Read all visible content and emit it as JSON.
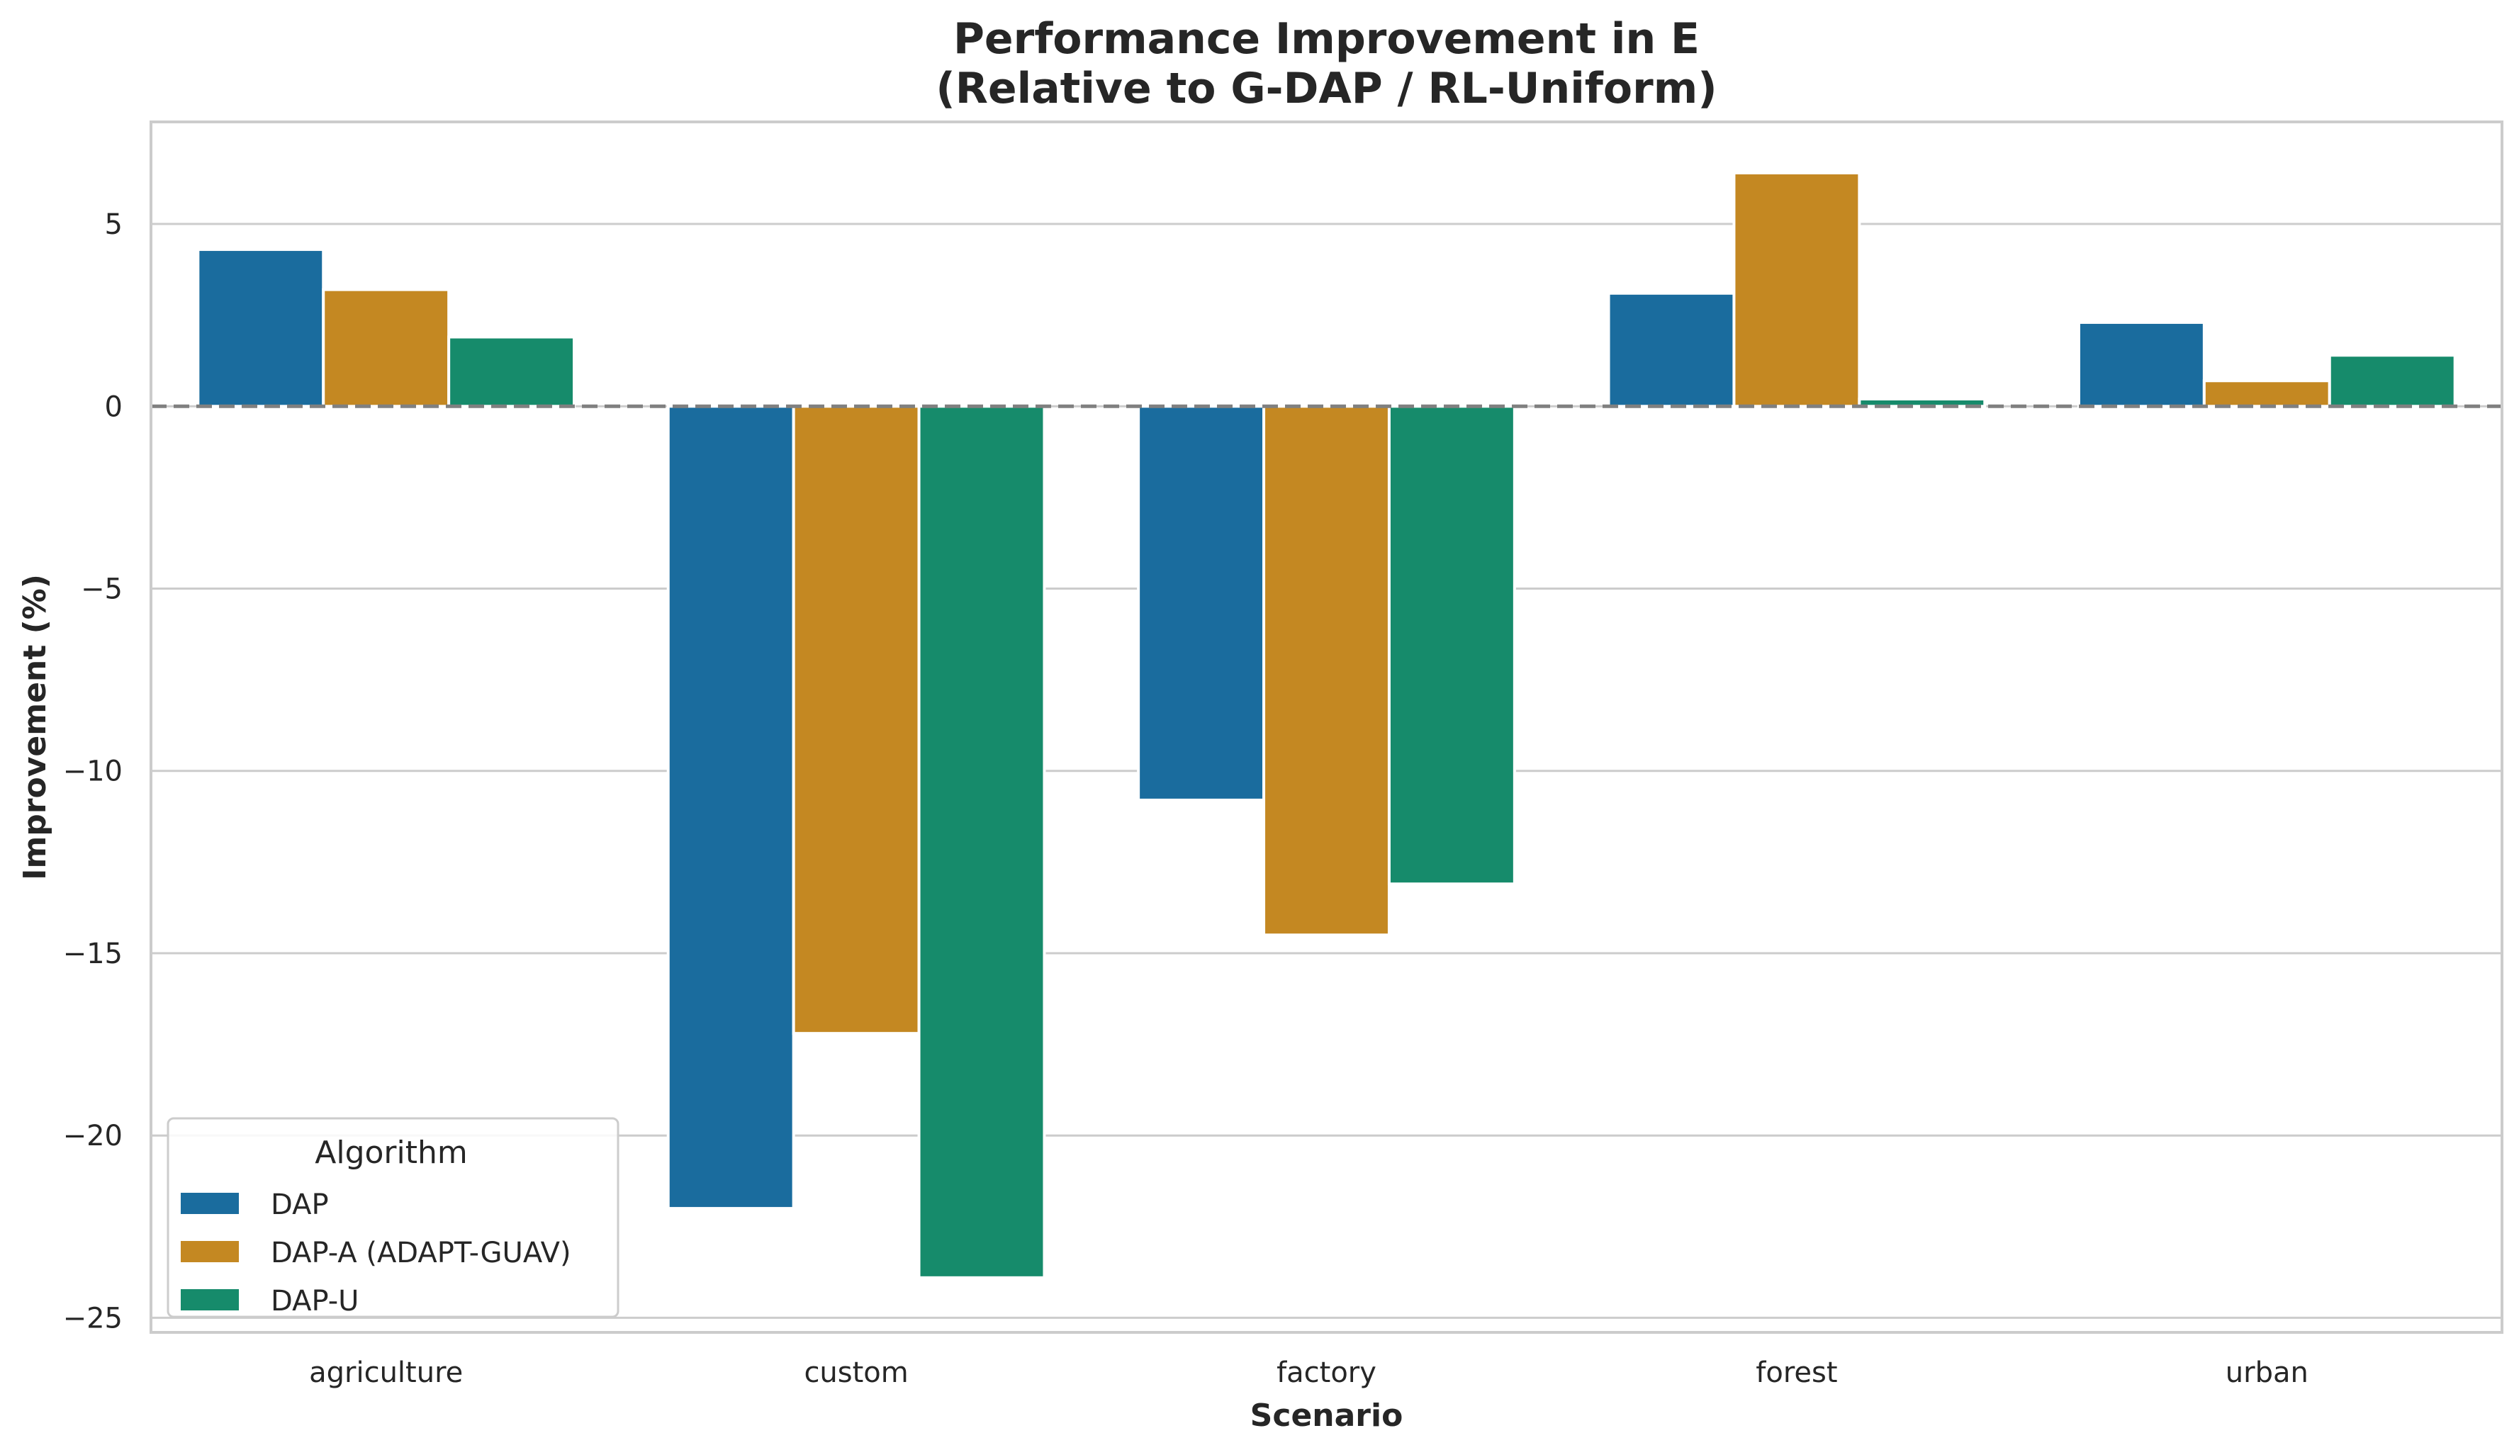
{
  "chart_data": {
    "type": "bar",
    "title": "Performance Improvement in E\n(Relative to G-DAP / RL-Uniform)",
    "title_lines": [
      "Performance Improvement in E",
      "(Relative to G-DAP / RL-Uniform)"
    ],
    "xlabel": "Scenario",
    "ylabel": "Improvement (%)",
    "categories": [
      "agriculture",
      "custom",
      "factory",
      "forest",
      "urban"
    ],
    "ylim": [
      -25.4,
      7.8
    ],
    "yticks": [
      5,
      0,
      -5,
      -10,
      -15,
      -20,
      -25
    ],
    "ytick_labels": [
      "5",
      "0",
      "−5",
      "−10",
      "−15",
      "−20",
      "−25"
    ],
    "grid": "horizontal",
    "reference_line": {
      "y": 0,
      "style": "dashed",
      "color": "#808080"
    },
    "legend": {
      "title": "Algorithm",
      "placement": "lower-left"
    },
    "series": [
      {
        "name": "DAP",
        "color": "#1a6c9e",
        "values": [
          4.3,
          -22.0,
          -10.8,
          3.1,
          2.3
        ]
      },
      {
        "name": "DAP-A (ADAPT-GUAV)",
        "color": "#c48822",
        "values": [
          3.2,
          -17.2,
          -14.5,
          6.4,
          0.7
        ]
      },
      {
        "name": "DAP-U",
        "color": "#168b6b",
        "values": [
          1.9,
          -23.9,
          -13.1,
          0.2,
          1.4
        ]
      }
    ]
  }
}
